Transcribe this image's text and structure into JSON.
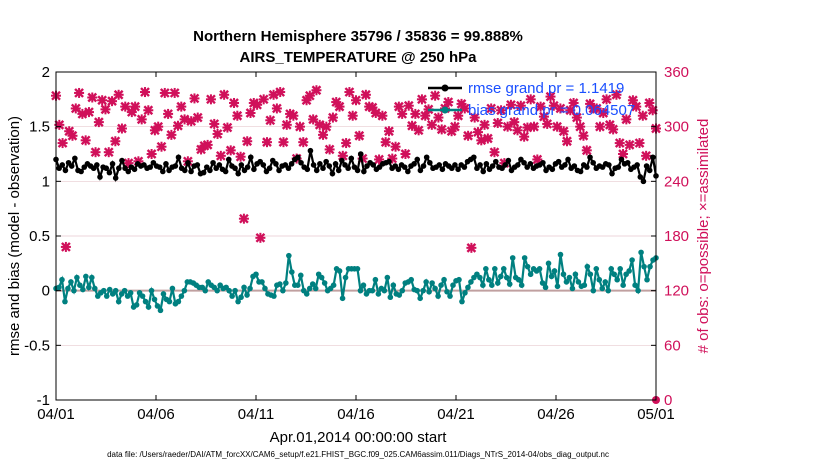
{
  "chart_data": {
    "type": "line",
    "title": "Northern Hemisphere 35796 / 35836 = 99.888%",
    "subtitle": "AIRS_TEMPERATURE @ 250 hPa",
    "xlabel": "Apr.01,2014 00:00:00 start",
    "ylabel": "rmse and bias (model - observation)",
    "y2label": "# of obs: o=possible; ×=assimilated",
    "footer": "data file: /Users/raeder/DAI/ATM_forcXX/CAM6_setup/f.e21.FHIST_BGC.f09_025.CAM6assim.011/Diags_NTrS_2014-04/obs_diag_output.nc",
    "x_ticks": [
      "04/01",
      "04/06",
      "04/11",
      "04/16",
      "04/21",
      "04/26",
      "05/01"
    ],
    "xlim": [
      0,
      30
    ],
    "ylim": [
      -1,
      2
    ],
    "y_ticks": [
      "-1",
      "-0.5",
      "0",
      "0.5",
      "1",
      "1.5",
      "2"
    ],
    "y2lim": [
      0,
      360
    ],
    "y2_ticks": [
      "0",
      "60",
      "120",
      "180",
      "240",
      "300",
      "360"
    ],
    "legend": [
      {
        "name": "rmse grand pr = 1.1419",
        "color": "#000000",
        "marker": "circle"
      },
      {
        "name": "bias grand pr = 0.064507",
        "color": "#008080",
        "marker": "circle"
      }
    ],
    "colors": {
      "rmse": "#000000",
      "bias": "#008080",
      "obs": "#d0105a",
      "zero": "#c0a0a0",
      "grid": "#e6c9cf"
    },
    "series": [
      {
        "name": "rmse",
        "values": [
          1.2,
          1.12,
          1.15,
          1.1,
          1.17,
          1.14,
          1.21,
          1.1,
          1.09,
          1.13,
          1.16,
          1.14,
          1.12,
          1.15,
          1.04,
          1.13,
          1.12,
          1.08,
          1.16,
          1.03,
          1.12,
          1.19,
          1.12,
          1.09,
          1.13,
          1.11,
          1.16,
          1.14,
          1.15,
          1.12,
          1.13,
          1.17,
          1.14,
          1.13,
          1.09,
          1.16,
          1.1,
          1.13,
          1.14,
          1.22,
          1.12,
          1.1,
          1.17,
          1.09,
          1.14,
          1.15,
          1.07,
          1.08,
          1.13,
          1.1,
          1.17,
          1.12,
          1.15,
          1.11,
          1.09,
          1.2,
          1.14,
          1.12,
          1.07,
          1.15,
          1.1,
          1.13,
          1.22,
          1.11,
          1.16,
          1.18,
          1.15,
          1.09,
          1.12,
          1.19,
          1.16,
          1.1,
          1.14,
          1.15,
          1.12,
          1.16,
          1.2,
          1.22,
          1.17,
          1.13,
          1.11,
          1.28,
          1.15,
          1.1,
          1.16,
          1.12,
          1.18,
          1.14,
          1.07,
          1.16,
          1.1,
          1.19,
          1.15,
          1.12,
          1.21,
          1.13,
          1.1,
          1.25,
          1.09,
          1.14,
          1.17,
          1.15,
          1.11,
          1.13,
          1.16,
          1.17,
          1.18,
          1.12,
          1.14,
          1.11,
          1.15,
          1.13,
          1.09,
          1.14,
          1.16,
          1.2,
          1.1,
          1.14,
          1.22,
          1.17,
          1.12,
          1.13,
          1.15,
          1.11,
          1.16,
          1.14,
          1.12,
          1.15,
          1.11,
          1.15,
          1.13,
          1.18,
          1.2,
          1.22,
          1.12,
          1.15,
          1.09,
          1.16,
          1.11,
          1.14,
          1.18,
          1.13,
          1.12,
          1.15,
          1.19,
          1.1,
          1.13,
          1.15,
          1.2,
          1.17,
          1.13,
          1.16,
          1.12,
          1.14,
          1.15,
          1.17,
          1.1,
          1.13,
          1.11,
          1.16,
          1.18,
          1.13,
          1.15,
          1.2,
          1.12,
          1.14,
          1.1,
          1.09,
          1.15,
          1.13,
          1.22,
          1.17,
          1.12,
          1.14,
          1.13,
          1.16,
          1.15,
          1.07,
          1.12,
          1.13,
          1.2,
          1.16,
          1.17,
          1.11,
          1.13,
          1.15,
          1.04,
          1.0,
          1.14,
          1.1,
          1.22,
          1.05
        ]
      },
      {
        "name": "bias",
        "values": [
          0.02,
          0.03,
          0.1,
          -0.1,
          0.02,
          0.08,
          0.0,
          0.12,
          0.05,
          0.01,
          0.13,
          0.03,
          0.12,
          0.02,
          -0.05,
          -0.02,
          0.0,
          -0.05,
          0.01,
          -0.03,
          0.0,
          -0.1,
          -0.03,
          0.0,
          -0.05,
          -0.02,
          -0.15,
          -0.13,
          -0.02,
          -0.05,
          -0.1,
          -0.15,
          0.0,
          -0.08,
          -0.14,
          -0.18,
          -0.03,
          -0.08,
          -0.1,
          0.02,
          -0.12,
          -0.1,
          -0.05,
          0.0,
          0.08,
          0.08,
          0.07,
          0.05,
          0.03,
          0.03,
          0.0,
          0.08,
          0.05,
          0.03,
          0.0,
          0.05,
          0.02,
          0.03,
          0.0,
          -0.05,
          0.0,
          -0.1,
          -0.06,
          0.03,
          -0.04,
          0.02,
          0.13,
          0.15,
          0.08,
          0.08,
          0.02,
          -0.03,
          -0.04,
          -0.05,
          0.05,
          0.06,
          0.0,
          0.07,
          0.32,
          0.17,
          0.05,
          0.05,
          0.14,
          0.0,
          -0.03,
          0.02,
          0.06,
          0.02,
          0.15,
          0.12,
          0.07,
          0.0,
          0.02,
          0.05,
          0.2,
          0.18,
          -0.07,
          0.12,
          0.2,
          0.2,
          0.2,
          0.2,
          0.0,
          0.05,
          -0.03,
          0.0,
          0.0,
          0.1,
          -0.03,
          0.02,
          0.0,
          0.12,
          -0.06,
          0.05,
          -0.03,
          -0.04,
          0.0,
          0.07,
          0.08,
          0.1,
          0.01,
          0.0,
          -0.07,
          0.0,
          0.08,
          -0.01,
          0.07,
          0.02,
          -0.05,
          0.05,
          0.1,
          -0.01,
          -0.05,
          0.05,
          0.09,
          0.1,
          -0.1,
          -0.02,
          0.03,
          0.08,
          0.12,
          0.15,
          0.12,
          0.05,
          0.2,
          0.1,
          0.05,
          0.2,
          0.07,
          0.13,
          0.2,
          0.12,
          0.06,
          0.3,
          0.12,
          0.1,
          0.05,
          0.3,
          0.22,
          0.15,
          0.2,
          0.18,
          0.2,
          0.07,
          0.03,
          0.25,
          0.13,
          0.18,
          0.04,
          0.33,
          0.15,
          0.08,
          0.12,
          0.02,
          0.15,
          0.08,
          0.04,
          0.05,
          0.22,
          0.15,
          0.0,
          0.2,
          0.1,
          0.02,
          0.08,
          0.0,
          0.2,
          0.15,
          0.1,
          0.2,
          0.05,
          0.15,
          0.18,
          0.28,
          0.05,
          0.0,
          0.35,
          0.22,
          0.1,
          0.22,
          0.28,
          0.3
        ]
      },
      {
        "name": "obs_count",
        "values": [
          334,
          302,
          282,
          168,
          295,
          290,
          320,
          337,
          314,
          285,
          316,
          332,
          272,
          305,
          329,
          319,
          272,
          328,
          284,
          335,
          298,
          322,
          260,
          316,
          322,
          262,
          308,
          338,
          318,
          270,
          296,
          300,
          278,
          337,
          314,
          291,
          337,
          301,
          322,
          308,
          262,
          306,
          331,
          310,
          275,
          279,
          280,
          330,
          303,
          292,
          268,
          335,
          299,
          274,
          326,
          312,
          267,
          199,
          284,
          315,
          326,
          324,
          178,
          330,
          283,
          307,
          335,
          320,
          338,
          283,
          302,
          314,
          312,
          265,
          300,
          283,
          329,
          334,
          308,
          340,
          302,
          291,
          300,
          275,
          310,
          327,
          322,
          268,
          282,
          338,
          312,
          329,
          290,
          265,
          335,
          322,
          321,
          315,
          264,
          312,
          283,
          295,
          265,
          278,
          322,
          314,
          270,
          323,
          301,
          314,
          296,
          330,
          312,
          319,
          302,
          334,
          310,
          297,
          320,
          327,
          295,
          300,
          312,
          325,
          320,
          290,
          167,
          310,
          294,
          285,
          302,
          287,
          320,
          272,
          304,
          318,
          260,
          300,
          324,
          305,
          296,
          323,
          289,
          299,
          330,
          300,
          264,
          322,
          311,
          303,
          333,
          323,
          300,
          320,
          295,
          284,
          318,
          326,
          310,
          300,
          290,
          274,
          325,
          320,
          320,
          300,
          315,
          330,
          302,
          297,
          335,
          282,
          270,
          308,
          280,
          329,
          322,
          282,
          312,
          268,
          326,
          318,
          298
        ]
      }
    ]
  }
}
